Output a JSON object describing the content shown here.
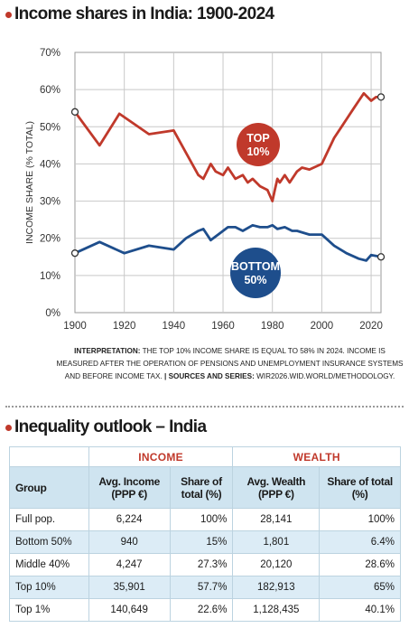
{
  "colors": {
    "accent": "#c0392b",
    "top10": "#c0392b",
    "bottom50": "#1e4e8c",
    "table_header": "#cfe4f0",
    "table_shade": "#dcecf6"
  },
  "chart_title": "Income shares in India: 1900-2024",
  "chart_data": {
    "type": "line",
    "title": "Income shares in India: 1900-2024",
    "xlabel": "",
    "ylabel": "INCOME SHARE (% TOTAL)",
    "xlim": [
      1900,
      2024
    ],
    "ylim": [
      0,
      70
    ],
    "x_ticks": [
      "1900",
      "1920",
      "1940",
      "1960",
      "1980",
      "2000",
      "2020"
    ],
    "x_tick_values": [
      1900,
      1920,
      1940,
      1960,
      1980,
      2000,
      2020
    ],
    "y_ticks": [
      "0%",
      "10%",
      "20%",
      "30%",
      "40%",
      "50%",
      "60%",
      "70%"
    ],
    "y_tick_values": [
      0,
      10,
      20,
      30,
      40,
      50,
      60,
      70
    ],
    "grid": true,
    "series": [
      {
        "name": "TOP 10%",
        "label_lines": [
          "TOP",
          "10%"
        ],
        "color": "#c0392b",
        "x": [
          1900,
          1910,
          1918,
          1930,
          1940,
          1945,
          1950,
          1952,
          1955,
          1957,
          1960,
          1962,
          1965,
          1968,
          1970,
          1972,
          1975,
          1978,
          1980,
          1981,
          1982,
          1983,
          1985,
          1987,
          1990,
          1992,
          1995,
          2000,
          2005,
          2008,
          2010,
          2013,
          2015,
          2017,
          2020,
          2022,
          2024
        ],
        "y": [
          54,
          45,
          53.5,
          48,
          49,
          43,
          37,
          36,
          40,
          38,
          37,
          39,
          36,
          37,
          35,
          36,
          34,
          33,
          30,
          33,
          36,
          35,
          37,
          35,
          38,
          39,
          38.5,
          40,
          47,
          50,
          52,
          55,
          57,
          59,
          57,
          58,
          58
        ]
      },
      {
        "name": "BOTTOM 50%",
        "label_lines": [
          "BOTTOM",
          "50%"
        ],
        "color": "#1e4e8c",
        "x": [
          1900,
          1910,
          1920,
          1930,
          1940,
          1945,
          1950,
          1952,
          1955,
          1958,
          1962,
          1965,
          1968,
          1972,
          1975,
          1978,
          1980,
          1982,
          1985,
          1988,
          1990,
          1995,
          2000,
          2005,
          2010,
          2015,
          2018,
          2020,
          2024
        ],
        "y": [
          16,
          19,
          16,
          18,
          17,
          20,
          22,
          22.5,
          19.5,
          21,
          23,
          23,
          22,
          23.5,
          23,
          23,
          23.5,
          22.5,
          23,
          22,
          22,
          21,
          21,
          18,
          16,
          14.5,
          14,
          15.5,
          15
        ]
      }
    ]
  },
  "note": {
    "label1": "INTERPRETATION:",
    "text1": "THE TOP 10% INCOME SHARE IS EQUAL TO 58% IN 2024. INCOME IS MEASURED AFTER THE OPERATION OF PENSIONS AND UNEMPLOYMENT INSURANCE SYSTEMS AND BEFORE INCOME TAX.",
    "label2": "| SOURCES AND SERIES:",
    "text2": "WIR2026.WID.WORLD/METHODOLOGY."
  },
  "table_title": "Inequality outlook – India",
  "table": {
    "group_income": "INCOME",
    "group_wealth": "WEALTH",
    "headers": [
      "Group",
      "Avg. Income (PPP €)",
      "Share of total (%)",
      "Avg. Wealth (PPP €)",
      "Share of total (%)"
    ],
    "rows": [
      [
        "Full pop.",
        "6,224",
        "100%",
        "28,141",
        "100%"
      ],
      [
        "Bottom 50%",
        "940",
        "15%",
        "1,801",
        "6.4%"
      ],
      [
        "Middle 40%",
        "4,247",
        "27.3%",
        "20,120",
        "28.6%"
      ],
      [
        "Top 10%",
        "35,901",
        "57.7%",
        "182,913",
        "65%"
      ],
      [
        "Top 1%",
        "140,649",
        "22.6%",
        "1,128,435",
        "40.1%"
      ]
    ]
  }
}
